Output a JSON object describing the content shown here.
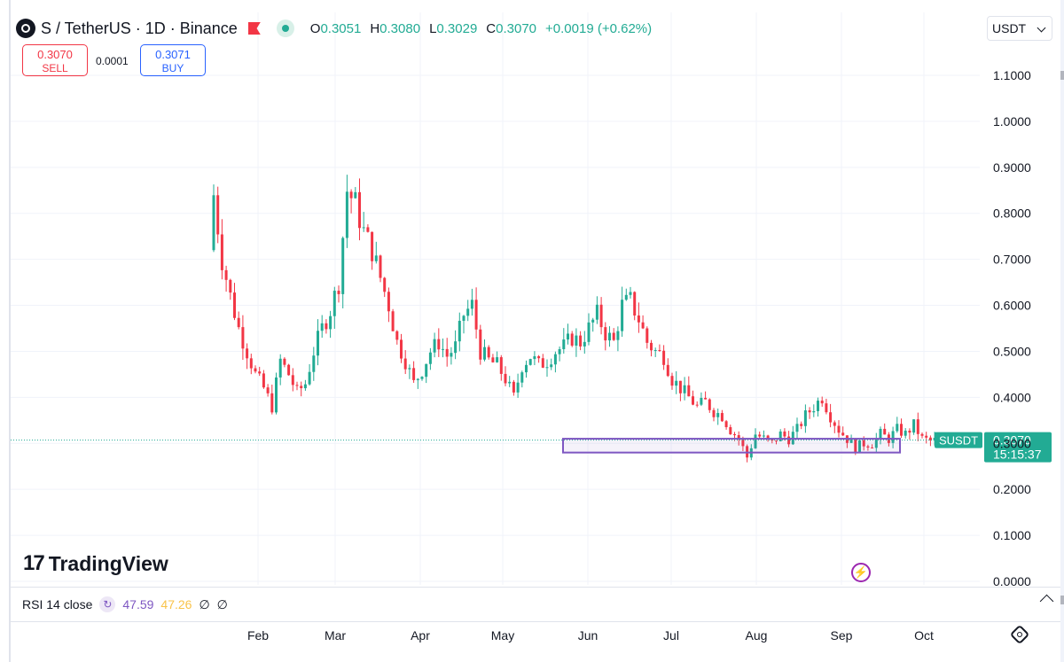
{
  "header": {
    "title": "S / TetherUS · 1D · Binance",
    "ohlc": {
      "o_label": "O",
      "o": "0.3051",
      "h_label": "H",
      "h": "0.3080",
      "l_label": "L",
      "l": "0.3029",
      "c_label": "C",
      "c": "0.3070",
      "change": "+0.0019 (+0.62%)"
    }
  },
  "trade": {
    "sell_price": "0.3070",
    "sell_label": "SELL",
    "spread": "0.0001",
    "buy_price": "0.3071",
    "buy_label": "BUY"
  },
  "currency": "USDT",
  "price_label": {
    "symbol": "SUSDT",
    "price": "0.3070",
    "countdown": "15:15:37"
  },
  "logo_text": "TradingView",
  "rsi": {
    "label": "RSI 14 close",
    "value1": "47.59",
    "value2": "47.26",
    "null1": "∅",
    "null2": "∅"
  },
  "colors": {
    "up": "#22ab94",
    "down": "#f23645",
    "box": "#7e57c2",
    "price_line": "#22ab94"
  },
  "chart_data": {
    "type": "candlestick",
    "title": "S / TetherUS · 1D · Binance",
    "y_ticks": [
      "1.1000",
      "1.0000",
      "0.9000",
      "0.8000",
      "0.7000",
      "0.6000",
      "0.5000",
      "0.4000",
      "0.3000",
      "0.2000",
      "0.1000",
      "0.0000"
    ],
    "ylim": [
      0,
      1.1
    ],
    "x_ticks": [
      "Feb",
      "Mar",
      "Apr",
      "May",
      "Jun",
      "Jul",
      "Aug",
      "Sep",
      "Oct"
    ],
    "last_price": 0.307,
    "range_box": {
      "start": "Jun",
      "end": "Sep",
      "top": 0.31,
      "bottom": 0.28
    },
    "series": [
      {
        "x": 0,
        "close": 0.84
      },
      {
        "x": 2,
        "close": 0.7
      },
      {
        "x": 4,
        "close": 0.62
      },
      {
        "x": 6,
        "close": 0.55
      },
      {
        "x": 8,
        "close": 0.5
      },
      {
        "x": 10,
        "close": 0.45
      },
      {
        "x": 12,
        "close": 0.42
      },
      {
        "x": 14,
        "close": 0.38
      },
      {
        "x": 16,
        "close": 0.48
      },
      {
        "x": 18,
        "close": 0.45
      },
      {
        "x": 20,
        "close": 0.41
      },
      {
        "x": 22,
        "close": 0.43
      },
      {
        "x": 24,
        "close": 0.5
      },
      {
        "x": 26,
        "close": 0.55
      },
      {
        "x": 28,
        "close": 0.59
      },
      {
        "x": 30,
        "close": 0.65
      },
      {
        "x": 32,
        "close": 0.85
      },
      {
        "x": 34,
        "close": 0.82
      },
      {
        "x": 36,
        "close": 0.76
      },
      {
        "x": 38,
        "close": 0.72
      },
      {
        "x": 40,
        "close": 0.66
      },
      {
        "x": 42,
        "close": 0.6
      },
      {
        "x": 44,
        "close": 0.52
      },
      {
        "x": 46,
        "close": 0.48
      },
      {
        "x": 48,
        "close": 0.43
      },
      {
        "x": 50,
        "close": 0.46
      },
      {
        "x": 52,
        "close": 0.5
      },
      {
        "x": 54,
        "close": 0.52
      },
      {
        "x": 56,
        "close": 0.49
      },
      {
        "x": 58,
        "close": 0.51
      },
      {
        "x": 60,
        "close": 0.58
      },
      {
        "x": 62,
        "close": 0.6
      },
      {
        "x": 64,
        "close": 0.5
      },
      {
        "x": 66,
        "close": 0.48
      },
      {
        "x": 68,
        "close": 0.47
      },
      {
        "x": 70,
        "close": 0.44
      },
      {
        "x": 72,
        "close": 0.4
      },
      {
        "x": 74,
        "close": 0.47
      },
      {
        "x": 76,
        "close": 0.49
      },
      {
        "x": 78,
        "close": 0.47
      },
      {
        "x": 80,
        "close": 0.48
      },
      {
        "x": 82,
        "close": 0.5
      },
      {
        "x": 84,
        "close": 0.51
      },
      {
        "x": 86,
        "close": 0.53
      },
      {
        "x": 88,
        "close": 0.52
      },
      {
        "x": 90,
        "close": 0.55
      },
      {
        "x": 92,
        "close": 0.58
      },
      {
        "x": 94,
        "close": 0.54
      },
      {
        "x": 96,
        "close": 0.52
      },
      {
        "x": 98,
        "close": 0.6
      },
      {
        "x": 100,
        "close": 0.61
      },
      {
        "x": 102,
        "close": 0.57
      },
      {
        "x": 104,
        "close": 0.52
      },
      {
        "x": 106,
        "close": 0.5
      },
      {
        "x": 108,
        "close": 0.49
      },
      {
        "x": 110,
        "close": 0.44
      },
      {
        "x": 112,
        "close": 0.42
      },
      {
        "x": 114,
        "close": 0.4
      },
      {
        "x": 116,
        "close": 0.38
      },
      {
        "x": 118,
        "close": 0.39
      },
      {
        "x": 120,
        "close": 0.37
      },
      {
        "x": 122,
        "close": 0.36
      },
      {
        "x": 124,
        "close": 0.33
      },
      {
        "x": 126,
        "close": 0.31
      },
      {
        "x": 128,
        "close": 0.27
      },
      {
        "x": 130,
        "close": 0.32
      },
      {
        "x": 132,
        "close": 0.31
      },
      {
        "x": 134,
        "close": 0.3
      },
      {
        "x": 136,
        "close": 0.32
      },
      {
        "x": 138,
        "close": 0.31
      },
      {
        "x": 140,
        "close": 0.33
      },
      {
        "x": 142,
        "close": 0.36
      },
      {
        "x": 144,
        "close": 0.38
      },
      {
        "x": 146,
        "close": 0.4
      },
      {
        "x": 148,
        "close": 0.36
      },
      {
        "x": 150,
        "close": 0.33
      },
      {
        "x": 152,
        "close": 0.31
      },
      {
        "x": 154,
        "close": 0.29
      },
      {
        "x": 156,
        "close": 0.3
      },
      {
        "x": 158,
        "close": 0.3
      },
      {
        "x": 160,
        "close": 0.32
      },
      {
        "x": 162,
        "close": 0.31
      },
      {
        "x": 164,
        "close": 0.33
      },
      {
        "x": 166,
        "close": 0.32
      },
      {
        "x": 168,
        "close": 0.34
      },
      {
        "x": 170,
        "close": 0.31
      },
      {
        "x": 172,
        "close": 0.305
      },
      {
        "x": 174,
        "close": 0.307
      }
    ]
  }
}
